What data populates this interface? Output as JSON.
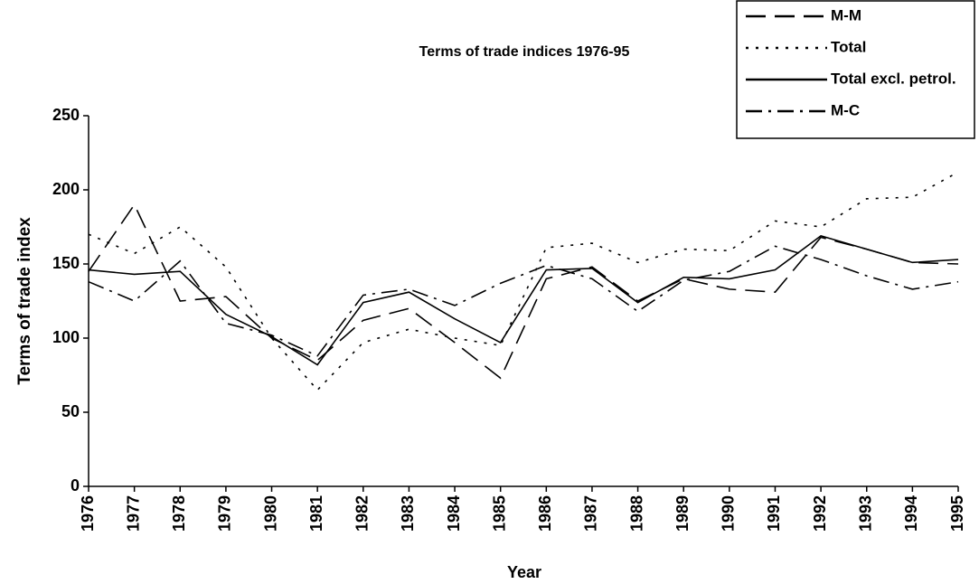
{
  "chart_data": {
    "type": "line",
    "title": "Terms of trade indices 1976-95",
    "x_label": "Year",
    "y_label": "Terms of trade index",
    "categories": [
      "1976",
      "1977",
      "1978",
      "1979",
      "1980",
      "1981",
      "1982",
      "1983",
      "1984",
      "1985",
      "1986",
      "1987",
      "1988",
      "1989",
      "1990",
      "1991",
      "1992",
      "1993",
      "1994",
      "1995"
    ],
    "series": [
      {
        "name": "M-M",
        "color": "#000000",
        "dash": "long",
        "values": [
          145,
          190,
          125,
          128,
          100,
          85,
          112,
          120,
          97,
          73,
          140,
          148,
          125,
          140,
          133,
          131,
          168,
          160,
          151,
          150
        ]
      },
      {
        "name": "Total",
        "color": "#000000",
        "dash": "dot",
        "values": [
          170,
          157,
          175,
          148,
          100,
          65,
          97,
          106,
          100,
          95,
          161,
          164,
          151,
          160,
          159,
          179,
          175,
          194,
          195,
          212
        ]
      },
      {
        "name": "Total excl. petrol.",
        "color": "#000000",
        "dash": "solid",
        "values": [
          146,
          143,
          145,
          116,
          101,
          82,
          124,
          131,
          113,
          97,
          146,
          147,
          124,
          141,
          140,
          146,
          169,
          160,
          151,
          153
        ]
      },
      {
        "name": "M-C",
        "color": "#000000",
        "dash": "dashdot",
        "values": [
          138,
          125,
          152,
          110,
          102,
          88,
          129,
          133,
          122,
          137,
          149,
          140,
          118,
          139,
          145,
          162,
          153,
          142,
          133,
          138
        ]
      }
    ],
    "ylim": [
      0,
      250
    ],
    "yticks": [
      0,
      50,
      100,
      150,
      200,
      250
    ],
    "grid": false,
    "legend": "top-right"
  }
}
